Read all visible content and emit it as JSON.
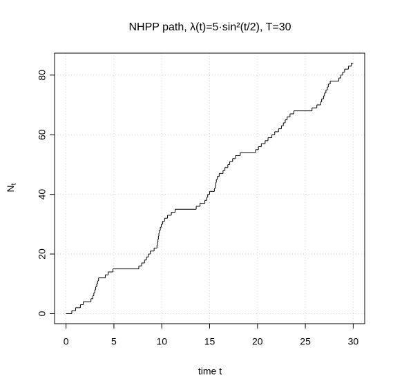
{
  "chart_data": {
    "type": "step",
    "title": "NHPP path,  λ(t)=5·sin²(t/2),   T=30",
    "xlabel": "time t",
    "ylabel": "N",
    "ylabel_subscript": "t",
    "x": [
      0,
      0.6,
      1.0,
      1.5,
      1.8,
      2.6,
      2.8,
      2.9,
      3.0,
      3.1,
      3.2,
      3.3,
      3.4,
      4.1,
      4.4,
      4.9,
      7.6,
      7.9,
      8.2,
      8.4,
      8.6,
      8.8,
      9.2,
      9.5,
      9.55,
      9.6,
      9.65,
      9.7,
      9.75,
      9.85,
      9.95,
      10.1,
      10.3,
      10.6,
      11.0,
      11.4,
      13.6,
      14.0,
      14.5,
      14.7,
      14.8,
      15.0,
      15.5,
      15.6,
      15.65,
      15.7,
      15.8,
      16.0,
      16.4,
      16.6,
      16.9,
      17.1,
      17.4,
      17.7,
      18.2,
      19.8,
      20.1,
      20.4,
      20.8,
      21.1,
      21.5,
      21.8,
      22.2,
      22.5,
      22.7,
      22.9,
      23.1,
      23.4,
      23.8,
      25.7,
      26.2,
      26.6,
      26.7,
      26.9,
      27.0,
      27.15,
      27.3,
      27.4,
      27.6,
      28.5,
      28.7,
      28.9,
      29.1,
      29.5,
      29.8,
      30
    ],
    "values": [
      0,
      1,
      2,
      3,
      4,
      5,
      6,
      7,
      8,
      9,
      10,
      11,
      12,
      13,
      14,
      15,
      16,
      17,
      18,
      19,
      20,
      21,
      22,
      23,
      24,
      25,
      26,
      27,
      28,
      29,
      30,
      31,
      32,
      33,
      34,
      35,
      36,
      37,
      38,
      39,
      40,
      41,
      42,
      43,
      44,
      45,
      46,
      47,
      48,
      49,
      50,
      51,
      52,
      53,
      54,
      55,
      56,
      57,
      58,
      59,
      60,
      61,
      62,
      63,
      64,
      65,
      66,
      67,
      68,
      69,
      70,
      71,
      72,
      73,
      74,
      75,
      76,
      77,
      78,
      79,
      80,
      81,
      82,
      83,
      84,
      84
    ],
    "color": "#000000",
    "xlim": [
      -1.2,
      31.2
    ],
    "ylim": [
      -3.36,
      87.36
    ],
    "xticks": [
      0,
      5,
      10,
      15,
      20,
      25,
      30
    ],
    "yticks": [
      0,
      20,
      40,
      60,
      80
    ],
    "grid": true
  }
}
